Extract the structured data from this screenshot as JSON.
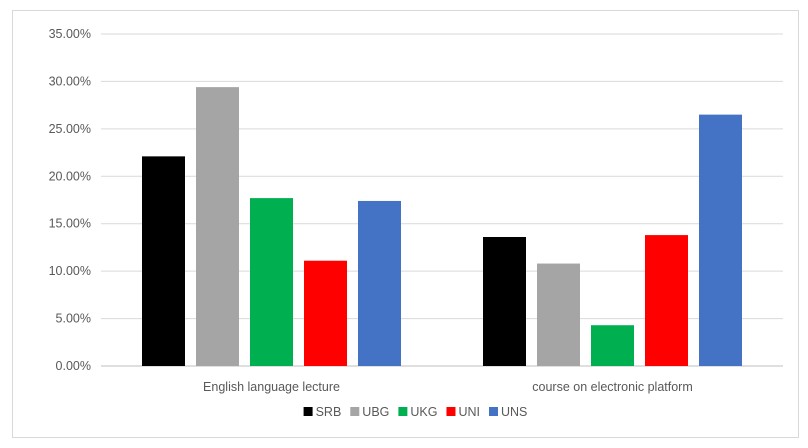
{
  "chart_data": {
    "type": "bar",
    "title": "",
    "xlabel": "",
    "ylabel": "",
    "ylim": [
      0,
      0.35
    ],
    "y_tick_step": 0.05,
    "y_tick_labels": [
      "0.00%",
      "5.00%",
      "10.00%",
      "15.00%",
      "20.00%",
      "25.00%",
      "30.00%",
      "35.00%"
    ],
    "grid": true,
    "legend_position": "bottom",
    "categories": [
      "English language lecture",
      "course on electronic platform"
    ],
    "series": [
      {
        "name": "SRB",
        "color": "#000000",
        "values": [
          0.221,
          0.136
        ]
      },
      {
        "name": "UBG",
        "color": "#a5a5a5",
        "values": [
          0.294,
          0.108
        ]
      },
      {
        "name": "UKG",
        "color": "#00b050",
        "values": [
          0.177,
          0.043
        ]
      },
      {
        "name": "UNI",
        "color": "#ff0000",
        "values": [
          0.111,
          0.138
        ]
      },
      {
        "name": "UNS",
        "color": "#4472c4",
        "values": [
          0.174,
          0.265
        ]
      }
    ]
  }
}
